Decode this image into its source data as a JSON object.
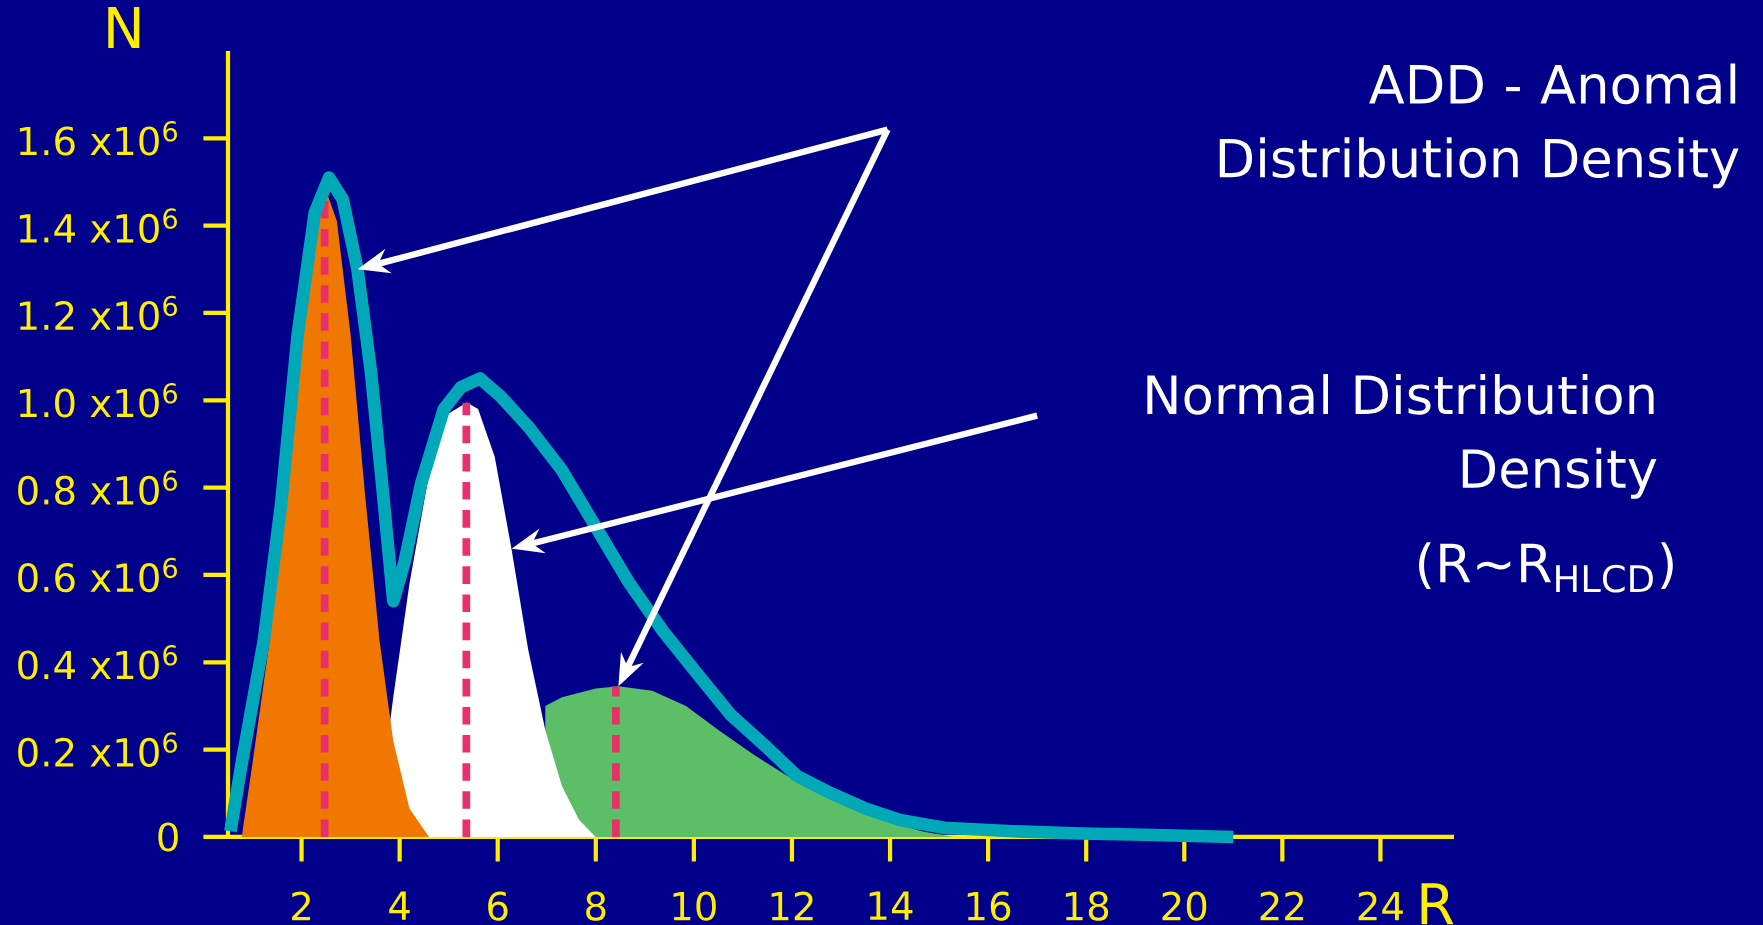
{
  "chart_data": {
    "type": "area",
    "xlabel": "R",
    "ylabel": "N",
    "xlim": [
      0.5,
      25.5
    ],
    "xticks": [
      2,
      4,
      6,
      8,
      10,
      12,
      14,
      16,
      18,
      20,
      22,
      24
    ],
    "ylim": [
      0,
      1800000
    ],
    "yticks": [
      0,
      {
        "value": 200000,
        "label": "0.2 x10$^{6}$"
      },
      {
        "value": 400000,
        "label": "0.4 x10$^{6}$"
      },
      {
        "value": 600000,
        "label": "0.6 x10$^{6}$"
      },
      {
        "value": 800000,
        "label": "0.8 x10$^{6}$"
      },
      {
        "value": 1000000,
        "label": "1.0 x10$^{6}$"
      },
      {
        "value": 1200000,
        "label": "1.2 x10$^{6}$"
      },
      {
        "value": 1400000,
        "label": "1.4 x10$^{6}$"
      },
      {
        "value": 1600000,
        "label": "1.6 x10$^{6}$"
      }
    ],
    "series": [
      {
        "color": "#f07800",
        "x": [
          0.78,
          1.0,
          1.35,
          1.69,
          1.99,
          2.27,
          2.47,
          2.72,
          3.0,
          3.29,
          3.59,
          3.87,
          4.2,
          4.6
        ],
        "values": [
          0,
          170000,
          450000,
          840000,
          1250000,
          1430000,
          1490000,
          1410000,
          1150000,
          790000,
          450000,
          220000,
          65000,
          0
        ]
      },
      {
        "color": "#ffffff",
        "x": [
          3.5,
          3.87,
          4.2,
          4.66,
          5.0,
          5.37,
          5.6,
          5.94,
          6.28,
          6.62,
          6.97,
          7.31,
          7.66,
          8.0
        ],
        "values": [
          0,
          320000,
          580000,
          870000,
          970000,
          995000,
          980000,
          870000,
          660000,
          430000,
          245000,
          116000,
          39000,
          0
        ]
      },
      {
        "color": "#5cbf68",
        "x": [
          6.97,
          7.31,
          8.0,
          8.46,
          9.15,
          9.84,
          10.5,
          11.2,
          11.9,
          12.8,
          13.7,
          14.65,
          15.3
        ],
        "values": [
          300000,
          320000,
          340000,
          345000,
          335000,
          300000,
          245000,
          190000,
          140000,
          90000,
          44000,
          13000,
          0
        ]
      },
      {
        "type": "line",
        "color": "#00a8b8",
        "x": [
          0.55,
          0.78,
          1.23,
          1.58,
          1.92,
          2.27,
          2.56,
          2.84,
          3.14,
          3.41,
          3.64,
          3.87,
          4.1,
          4.44,
          4.9,
          5.25,
          5.64,
          6.05,
          6.62,
          7.31,
          8.0,
          8.69,
          9.38,
          10.06,
          10.75,
          11.44,
          12.1,
          12.8,
          13.5,
          14.2,
          15.1,
          16.5,
          17.9,
          19.2,
          21.0
        ],
        "values": [
          13000,
          170000,
          450000,
          760000,
          1150000,
          1430000,
          1510000,
          1460000,
          1300000,
          1070000,
          810000,
          540000,
          630000,
          810000,
          980000,
          1030000,
          1050000,
          1010000,
          940000,
          840000,
          710000,
          580000,
          470000,
          375000,
          280000,
          210000,
          140000,
          100000,
          65000,
          39000,
          21000,
          13000,
          8000,
          5000,
          0
        ]
      }
    ],
    "ref_lines": [
      {
        "axis": "x",
        "value": 2.47,
        "color": "#e8306a",
        "line_style": "dashed"
      },
      {
        "axis": "x",
        "value": 5.36,
        "color": "#e8306a",
        "line_style": "dashed"
      },
      {
        "axis": "x",
        "value": 8.41,
        "color": "#e8306a",
        "line_style": "dashed"
      }
    ],
    "annotations": [
      "ADD  - Anomal Distribution Density",
      "Normal Distribution Density",
      "(R~R$_{HLCD}$)"
    ]
  }
}
